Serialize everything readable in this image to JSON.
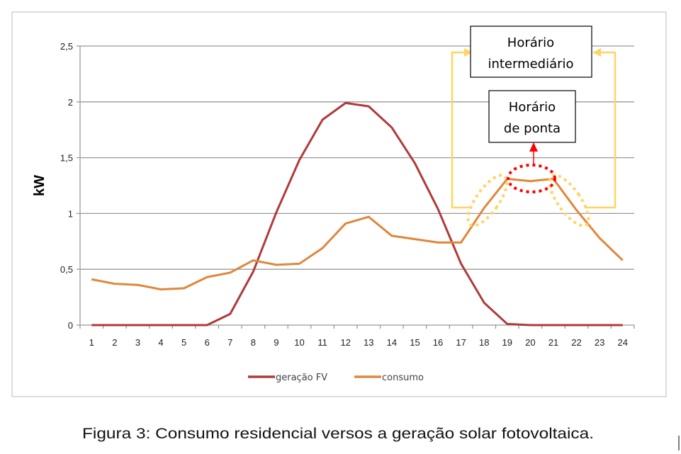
{
  "chart_data": {
    "type": "line",
    "title": "",
    "xlabel": "",
    "ylabel": "kW",
    "categories": [
      "1",
      "2",
      "3",
      "4",
      "5",
      "6",
      "7",
      "8",
      "9",
      "10",
      "11",
      "12",
      "13",
      "14",
      "15",
      "16",
      "17",
      "18",
      "19",
      "20",
      "21",
      "22",
      "23",
      "24"
    ],
    "ylim": [
      0,
      2.5
    ],
    "yticks": [
      "0",
      "0,5",
      "1",
      "1,5",
      "2",
      "2,5"
    ],
    "grid": true,
    "legend_position": "bottom",
    "series": [
      {
        "name": "geração FV",
        "color": "#b03a3a",
        "values": [
          0,
          0,
          0,
          0,
          0,
          0,
          0.1,
          0.48,
          1.01,
          1.48,
          1.84,
          1.99,
          1.96,
          1.77,
          1.45,
          1.04,
          0.55,
          0.2,
          0.01,
          0,
          0,
          0,
          0,
          0
        ]
      },
      {
        "name": "consumo",
        "color": "#e0873a",
        "values": [
          0.41,
          0.37,
          0.36,
          0.32,
          0.33,
          0.43,
          0.47,
          0.58,
          0.54,
          0.55,
          0.69,
          0.91,
          0.97,
          0.8,
          0.77,
          0.74,
          0.74,
          1.05,
          1.31,
          1.29,
          1.31,
          1.03,
          0.78,
          0.58
        ]
      }
    ],
    "annotations": [
      {
        "lines": [
          "Horário",
          "intermediário"
        ],
        "color": "#ffd466",
        "hours": [
          "18",
          "22"
        ]
      },
      {
        "lines": [
          "Horário",
          "de ponta"
        ],
        "color": "#ff0000",
        "hours": [
          "19",
          "20",
          "21"
        ]
      }
    ]
  },
  "caption": "Figura 3: Consumo residencial versos a geração solar fotovoltaica."
}
